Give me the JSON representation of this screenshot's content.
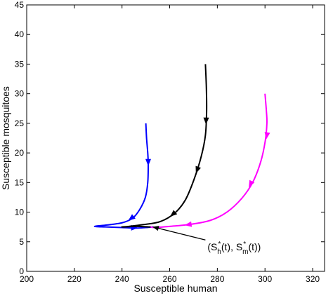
{
  "chart_data": {
    "type": "line",
    "title": "",
    "xlabel": "Susceptible  human",
    "ylabel": "Susceptible mosquitoes",
    "xlim": [
      200,
      325
    ],
    "ylim": [
      0,
      45
    ],
    "xticks": [
      200,
      220,
      240,
      260,
      280,
      300,
      320
    ],
    "yticks": [
      0,
      5,
      10,
      15,
      20,
      25,
      30,
      35,
      40,
      45
    ],
    "grid": false,
    "legend": "none",
    "series": [
      {
        "color": "#0000ff",
        "points": [
          [
            250,
            25
          ],
          [
            250.3,
            22.5
          ],
          [
            250.8,
            20
          ],
          [
            251,
            18
          ],
          [
            250.8,
            15
          ],
          [
            249.8,
            12.5
          ],
          [
            247.5,
            10.5
          ],
          [
            244.5,
            9
          ],
          [
            240,
            8.2
          ],
          [
            233,
            7.8
          ],
          [
            228.5,
            7.6
          ],
          [
            233,
            7.5
          ],
          [
            240,
            7.4
          ],
          [
            246,
            7.3
          ],
          [
            250,
            7.4
          ],
          [
            253,
            7.5
          ]
        ],
        "arrows": [
          [
            251,
            18.5
          ],
          [
            244,
            9
          ],
          [
            245,
            7.35
          ]
        ]
      },
      {
        "color": "#000000",
        "points": [
          [
            275,
            35
          ],
          [
            275.4,
            31
          ],
          [
            275.5,
            27
          ],
          [
            275,
            23
          ],
          [
            273.3,
            19.5
          ],
          [
            270.2,
            15.5
          ],
          [
            266.5,
            12
          ],
          [
            262,
            9.8
          ],
          [
            256,
            8.4
          ],
          [
            249,
            7.9
          ],
          [
            243,
            7.6
          ],
          [
            240,
            7.5
          ],
          [
            246,
            7.6
          ],
          [
            252,
            7.5
          ]
        ],
        "arrows": [
          [
            275.3,
            25.5
          ],
          [
            271.6,
            17.2
          ],
          [
            261.5,
            9.7
          ]
        ]
      },
      {
        "color": "#ff00ff",
        "points": [
          [
            300,
            30
          ],
          [
            300.6,
            27
          ],
          [
            300.8,
            25
          ],
          [
            300.1,
            22
          ],
          [
            298.2,
            18.5
          ],
          [
            294.8,
            15
          ],
          [
            290.2,
            12.3
          ],
          [
            284,
            10
          ],
          [
            277,
            8.6
          ],
          [
            268,
            7.9
          ],
          [
            260,
            7.6
          ],
          [
            254,
            7.4
          ],
          [
            252,
            7.5
          ]
        ],
        "arrows": [
          [
            300.8,
            23
          ],
          [
            294,
            14.8
          ],
          [
            268,
            7.9
          ]
        ]
      }
    ],
    "annotations": [
      {
        "text_open": "(S",
        "sup1": "*",
        "sub1": "h",
        "text_mid": "(t), S",
        "sup2": "*",
        "sub2": "m",
        "text_close": "(t))",
        "arrow_from": [
          275,
          5.3
        ],
        "arrow_to": [
          253,
          7.5
        ]
      }
    ]
  }
}
